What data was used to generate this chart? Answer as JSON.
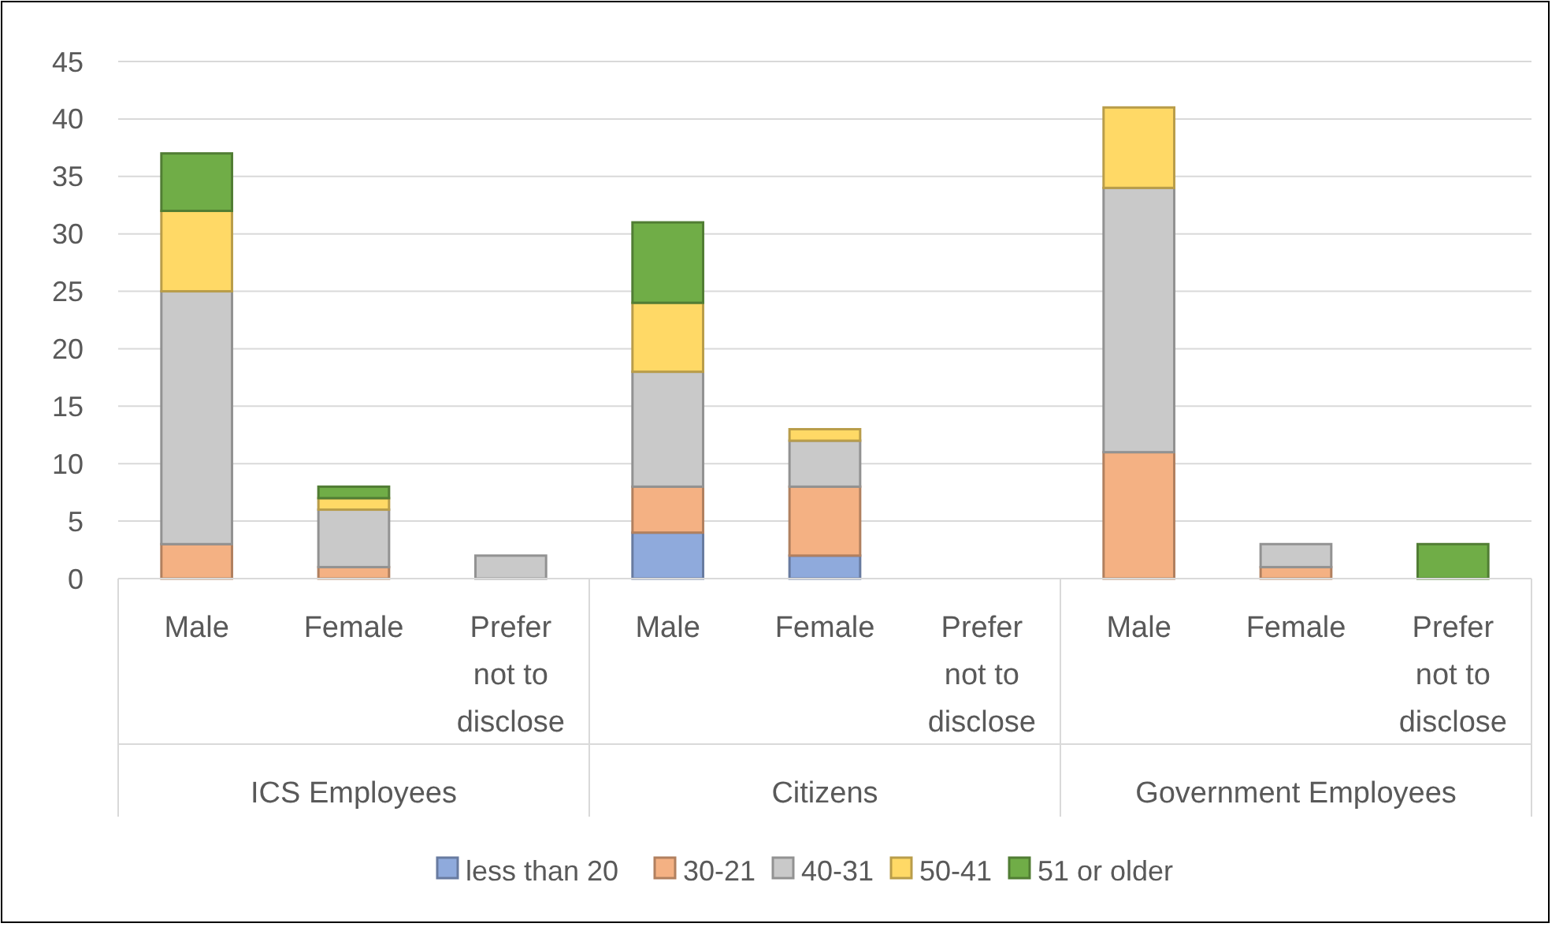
{
  "chart_data": {
    "type": "bar",
    "stacked": true,
    "categories": [
      "Male",
      "Female",
      "Prefer not to disclose",
      "Male",
      "Female",
      "Prefer not to disclose",
      "Male",
      "Female",
      "Prefer not to disclose"
    ],
    "annotations": [
      "ICS Employees",
      "Citizens",
      "Government Employees"
    ],
    "series": [
      {
        "name": "less than 20",
        "color": "#8faadc",
        "values": [
          0,
          0,
          0,
          4,
          2,
          0,
          0,
          0,
          0
        ]
      },
      {
        "name": "30-21",
        "color": "#f4b183",
        "values": [
          3,
          1,
          0,
          4,
          6,
          0,
          11,
          1,
          0
        ]
      },
      {
        "name": "40-31",
        "color": "#c9c9c9",
        "values": [
          22,
          5,
          2,
          10,
          4,
          0,
          23,
          2,
          0
        ]
      },
      {
        "name": "50-41",
        "color": "#ffd966",
        "values": [
          7,
          1,
          0,
          6,
          1,
          0,
          7,
          0,
          0
        ]
      },
      {
        "name": "51 or older",
        "color": "#70ad47",
        "values": [
          5,
          1,
          0,
          7,
          0,
          0,
          0,
          0,
          3
        ]
      }
    ],
    "ylim": [
      0,
      45
    ],
    "yticks": [
      0,
      5,
      10,
      15,
      20,
      25,
      30,
      35,
      40,
      45
    ],
    "grid": "y",
    "legend": "bottom"
  }
}
